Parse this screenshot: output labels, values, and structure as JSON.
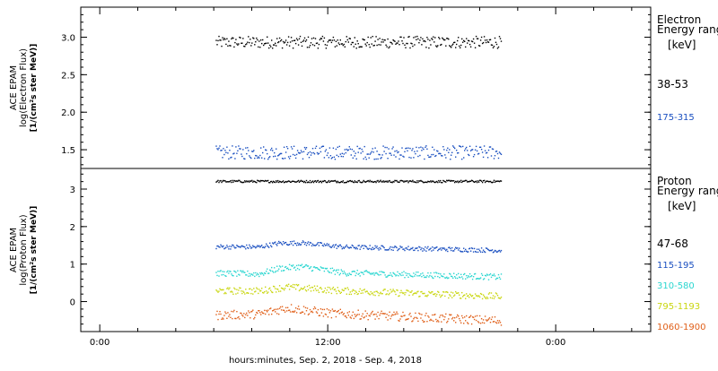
{
  "chart_data": [
    {
      "type": "scatter",
      "panel": "electron",
      "ylabel_lines": [
        "ACE EPAM",
        "log(Electron Flux)",
        "[1/(cm²s ster MeV)]"
      ],
      "legend_title": [
        "Electron",
        "Energy range"
      ],
      "legend_unit": "[keV]",
      "yticks": [
        "1.5",
        "2.0",
        "2.5",
        "3.0"
      ],
      "ylim": [
        1.25,
        3.4
      ],
      "grid": false,
      "legend_position": "right",
      "series": [
        {
          "name": "38-53",
          "color": "#000000",
          "level": 2.94,
          "spread": 0.08,
          "trend": []
        },
        {
          "name": "175-315",
          "color": "#1a4fc0",
          "level": 1.47,
          "spread": 0.09,
          "trend": []
        }
      ]
    },
    {
      "type": "scatter",
      "panel": "proton",
      "ylabel_lines": [
        "ACE EPAM",
        "log(Proton Flux)",
        "[1/(cm²s ster MeV)]"
      ],
      "legend_title": [
        "Proton",
        "Energy range"
      ],
      "legend_unit": "[keV]",
      "yticks": [
        "0",
        "1",
        "2",
        "3"
      ],
      "ylim": [
        -0.8,
        3.55
      ],
      "grid": false,
      "legend_position": "right",
      "series": [
        {
          "name": "47-68",
          "color": "#000000",
          "level": 3.22,
          "spread": 0.03,
          "trend": [
            [
              0,
              3.22
            ],
            [
              1,
              3.22
            ]
          ]
        },
        {
          "name": "115-195",
          "color": "#1a4fc0",
          "level": 1.45,
          "spread": 0.06,
          "trend": [
            [
              0,
              1.48
            ],
            [
              0.15,
              1.47
            ],
            [
              0.22,
              1.57
            ],
            [
              0.3,
              1.58
            ],
            [
              0.45,
              1.47
            ],
            [
              1,
              1.38
            ]
          ]
        },
        {
          "name": "310-580",
          "color": "#2ad6d0",
          "level": 0.75,
          "spread": 0.08,
          "trend": [
            [
              0,
              0.77
            ],
            [
              0.15,
              0.75
            ],
            [
              0.22,
              0.9
            ],
            [
              0.3,
              0.95
            ],
            [
              0.45,
              0.78
            ],
            [
              1,
              0.67
            ]
          ]
        },
        {
          "name": "795-1193",
          "color": "#c9d60f",
          "level": 0.28,
          "spread": 0.09,
          "trend": [
            [
              0,
              0.3
            ],
            [
              0.15,
              0.3
            ],
            [
              0.25,
              0.4
            ],
            [
              0.45,
              0.3
            ],
            [
              1,
              0.15
            ]
          ]
        },
        {
          "name": "1060-1900",
          "color": "#e0601a",
          "level": -0.35,
          "spread": 0.12,
          "trend": [
            [
              0,
              -0.35
            ],
            [
              0.15,
              -0.32
            ],
            [
              0.25,
              -0.15
            ],
            [
              0.4,
              -0.3
            ],
            [
              1,
              -0.5
            ]
          ]
        }
      ]
    }
  ],
  "x_axis": {
    "ticks": [
      {
        "label": "0:00",
        "hour": 0
      },
      {
        "label": "12:00",
        "hour": 12
      },
      {
        "label": "0:00",
        "hour": 24
      }
    ],
    "range_hours": [
      -1,
      29
    ],
    "data_start_hour": 6.1,
    "data_end_hour": 21.1,
    "label": "hours:minutes, Sep.  2, 2018 - Sep.  4, 2018"
  }
}
